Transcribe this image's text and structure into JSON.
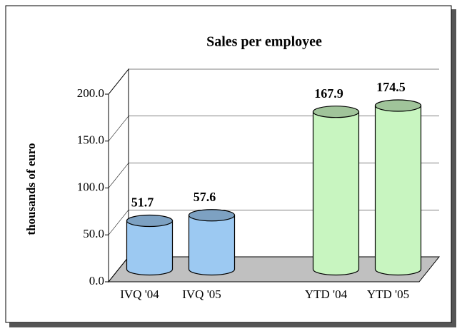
{
  "chart_data": {
    "type": "bar3d",
    "title": "Sales per employee",
    "y_label": "thousands of euro",
    "categories": [
      "IVQ '04",
      "IVQ '05",
      null,
      "YTD '04",
      "YTD '05"
    ],
    "values": [
      51.7,
      57.6,
      null,
      167.9,
      174.5
    ],
    "colors": [
      "#9cc9f2",
      "#9cc9f2",
      null,
      "#c8f5c0",
      "#c8f5c0"
    ],
    "ylim": [
      0,
      200
    ],
    "yticks": [
      {
        "value": 0,
        "label": "0.0"
      },
      {
        "value": 50,
        "label": "50.0"
      },
      {
        "value": 100,
        "label": "100.0"
      },
      {
        "value": 150,
        "label": "150.0"
      },
      {
        "value": 200,
        "label": "200.0"
      }
    ],
    "grid": true
  }
}
